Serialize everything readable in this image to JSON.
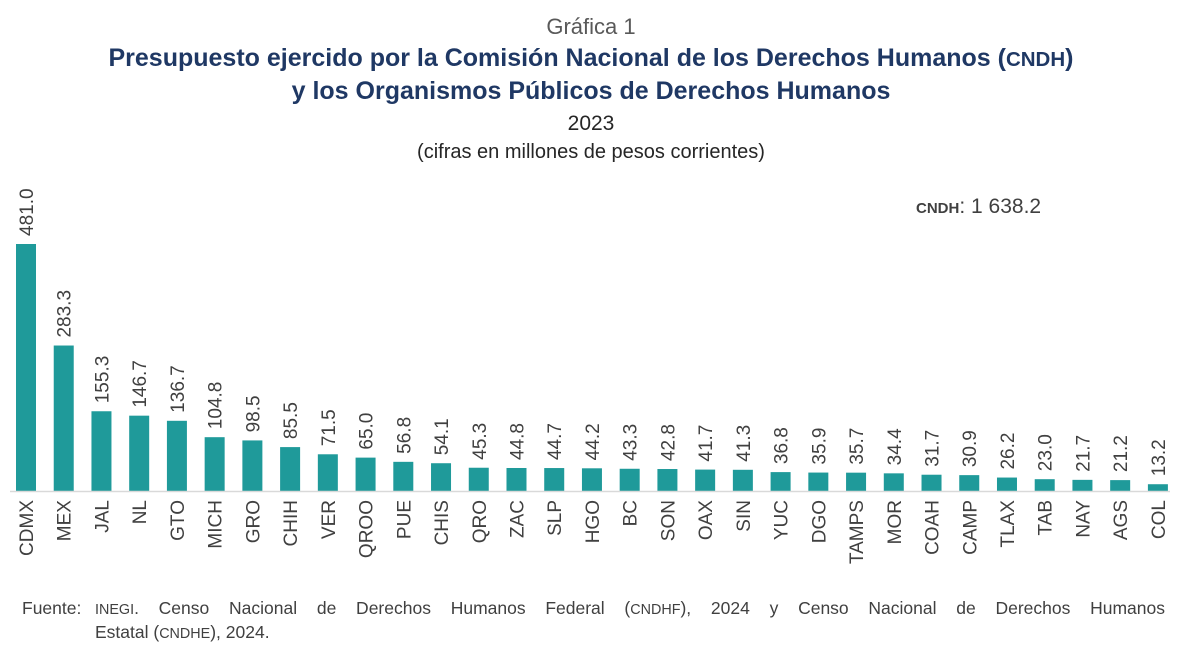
{
  "header": {
    "label": "Gráfica 1",
    "title_line1_pre": "Presupuesto ejercido por la Comisión Nacional de los Derechos Humanos (",
    "title_line1_abbr": "CNDH",
    "title_line1_post": ")",
    "title_line2": "y los Organismos Públicos de Derechos Humanos",
    "year": "2023",
    "units": "(cifras en millones de pesos corrientes)"
  },
  "annotation": {
    "key": "CNDH",
    "sep": ":",
    "value": "1 638.2"
  },
  "source": {
    "label": "Fuente:",
    "org": "INEGI",
    "line1_a": ". Censo Nacional de Derechos Humanos Federal (",
    "abbr1": "CNDHF",
    "line1_b": "), 2024 y Censo Nacional de Derechos Humanos",
    "line2_a": "Estatal (",
    "abbr2": "CNDHE",
    "line2_b": "), 2024."
  },
  "chart_data": {
    "type": "bar",
    "title": "Presupuesto ejercido por la Comisión Nacional de los Derechos Humanos (CNDH) y los Organismos Públicos de Derechos Humanos",
    "subtitle": "2023 (cifras en millones de pesos corrientes)",
    "xlabel": "",
    "ylabel": "",
    "categories": [
      "CDMX",
      "MEX",
      "JAL",
      "NL",
      "GTO",
      "MICH",
      "GRO",
      "CHIH",
      "VER",
      "QROO",
      "PUE",
      "CHIS",
      "QRO",
      "ZAC",
      "SLP",
      "HGO",
      "BC",
      "SON",
      "OAX",
      "SIN",
      "YUC",
      "DGO",
      "TAMPS",
      "MOR",
      "COAH",
      "CAMP",
      "TLAX",
      "TAB",
      "NAY",
      "AGS",
      "COL"
    ],
    "values": [
      481.0,
      283.3,
      155.3,
      146.7,
      136.7,
      104.8,
      98.5,
      85.5,
      71.5,
      65.0,
      56.8,
      54.1,
      45.3,
      44.8,
      44.7,
      44.2,
      43.3,
      42.8,
      41.7,
      41.3,
      36.8,
      35.9,
      35.7,
      34.4,
      31.7,
      30.9,
      26.2,
      23.0,
      21.7,
      21.2,
      13.2
    ],
    "value_labels": [
      "481.0",
      "283.3",
      "155.3",
      "146.7",
      "136.7",
      "104.8",
      "98.5",
      "85.5",
      "71.5",
      "65.0",
      "56.8",
      "54.1",
      "45.3",
      "44.8",
      "44.7",
      "44.2",
      "43.3",
      "42.8",
      "41.7",
      "41.3",
      "36.8",
      "35.9",
      "35.7",
      "34.4",
      "31.7",
      "30.9",
      "26.2",
      "23.0",
      "21.7",
      "21.2",
      "13.2"
    ],
    "ylim": [
      0,
      481.0
    ],
    "grid": false,
    "legend": "none",
    "annotations": [
      "CNDH: 1 638.2"
    ],
    "bar_color": "#1f9a9a",
    "axis_color": "#d9d9d9"
  }
}
